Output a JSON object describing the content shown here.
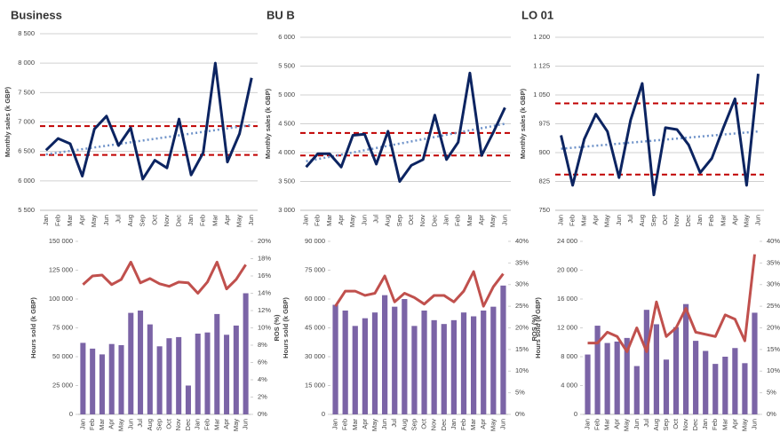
{
  "chart_data": [
    {
      "type": "line",
      "title": "Business",
      "y_label": "Monthly sales (k GBP)",
      "categories": [
        "Jan",
        "Feb",
        "Mar",
        "Apr",
        "May",
        "Jun",
        "Jul",
        "Aug",
        "Sep",
        "Oct",
        "Nov",
        "Dec",
        "Jan",
        "Feb",
        "Mar",
        "Apr",
        "May",
        "Jun"
      ],
      "series": [
        {
          "color": "#0c2461",
          "values": [
            6520,
            6720,
            6630,
            6080,
            6880,
            7100,
            6600,
            6900,
            6030,
            6350,
            6220,
            7050,
            6100,
            6480,
            8000,
            6320,
            6800,
            7750
          ]
        }
      ],
      "control_limits": [
        6930,
        6440
      ],
      "control_color": "#c00000",
      "trend_line": [
        6450,
        6950
      ],
      "trend_color": "#6f93c9",
      "ylim": [
        5500,
        8500
      ],
      "yticks": [
        {
          "value": 5500,
          "label": "5 500"
        },
        {
          "value": 6000,
          "label": "6 000"
        },
        {
          "value": 6500,
          "label": "6 500"
        },
        {
          "value": 7000,
          "label": "7 000"
        },
        {
          "value": 7500,
          "label": "7 500"
        },
        {
          "value": 8000,
          "label": "8 000"
        },
        {
          "value": 8500,
          "label": "8 500"
        }
      ],
      "grid": true
    },
    {
      "type": "line",
      "title": "BU B",
      "y_label": "Monthly sales (k GBP)",
      "categories": [
        "Jan",
        "Feb",
        "Mar",
        "Apr",
        "May",
        "Jun",
        "Jul",
        "Aug",
        "Sep",
        "Oct",
        "Nov",
        "Dec",
        "Jan",
        "Feb",
        "Mar",
        "Apr",
        "May",
        "Jun"
      ],
      "series": [
        {
          "color": "#0c2461",
          "values": [
            3750,
            3980,
            3980,
            3750,
            4300,
            4320,
            3800,
            4370,
            3500,
            3780,
            3880,
            4650,
            3880,
            4180,
            5380,
            3950,
            4350,
            4780
          ]
        }
      ],
      "control_limits": [
        4340,
        3950
      ],
      "control_color": "#c00000",
      "trend_line": [
        3850,
        4500
      ],
      "trend_color": "#6f93c9",
      "ylim": [
        3000,
        6000
      ],
      "yticks": [
        {
          "value": 3000,
          "label": "3 000"
        },
        {
          "value": 3500,
          "label": "3 500"
        },
        {
          "value": 4000,
          "label": "4 000"
        },
        {
          "value": 4500,
          "label": "4 500"
        },
        {
          "value": 5000,
          "label": "5 000"
        },
        {
          "value": 5500,
          "label": "5 500"
        },
        {
          "value": 6000,
          "label": "6 000"
        }
      ],
      "grid": true
    },
    {
      "type": "line",
      "title": "LO 01",
      "y_label": "Monthly sales (k GBP)",
      "categories": [
        "Jan",
        "Feb",
        "Mar",
        "Apr",
        "May",
        "Jun",
        "Jul",
        "Aug",
        "Sep",
        "Oct",
        "Nov",
        "Dec",
        "Jan",
        "Feb",
        "Mar",
        "Apr",
        "May",
        "Jun"
      ],
      "series": [
        {
          "color": "#0c2461",
          "values": [
            945,
            815,
            935,
            1000,
            955,
            835,
            985,
            1080,
            790,
            965,
            960,
            920,
            848,
            885,
            965,
            1040,
            815,
            1105
          ]
        }
      ],
      "control_limits": [
        1028,
        843
      ],
      "control_color": "#c00000",
      "trend_line": [
        910,
        955
      ],
      "trend_color": "#6f93c9",
      "ylim": [
        750,
        1200
      ],
      "yticks": [
        750,
        825,
        900,
        975,
        {
          "value": 1050,
          "label": "1 050"
        },
        {
          "value": 1125,
          "label": "1 125"
        },
        {
          "value": 1200,
          "label": "1 200"
        }
      ],
      "grid": true
    },
    {
      "type": "combo",
      "y_label": "Hours sold (k GBP)",
      "y2_label": "ROS (%)",
      "categories": [
        "Jan",
        "Feb",
        "Mar",
        "Apr",
        "May",
        "Jun",
        "Jul",
        "Aug",
        "Sep",
        "Oct",
        "Nov",
        "Dec",
        "Jan",
        "Feb",
        "Mar",
        "Apr",
        "May",
        "Jun"
      ],
      "series": [
        {
          "type": "bar",
          "color": "#7b64a6",
          "values": [
            62000,
            57000,
            52000,
            61000,
            60000,
            88000,
            90000,
            78000,
            59000,
            66000,
            67000,
            25000,
            70000,
            71000,
            87000,
            69000,
            77000,
            105000
          ]
        },
        {
          "type": "line",
          "axis": "y2",
          "color": "#c0504d",
          "values": [
            15.0,
            16.0,
            16.1,
            15.0,
            15.6,
            17.6,
            15.2,
            15.7,
            15.1,
            14.8,
            15.3,
            15.2,
            14.0,
            15.3,
            17.6,
            14.5,
            15.6,
            17.3
          ]
        }
      ],
      "ylim": [
        0,
        150000
      ],
      "yticks": [
        0,
        {
          "value": 25000,
          "label": "25 000"
        },
        {
          "value": 50000,
          "label": "50 000"
        },
        {
          "value": 75000,
          "label": "75 000"
        },
        {
          "value": 100000,
          "label": "100 000"
        },
        {
          "value": 125000,
          "label": "125 000"
        },
        {
          "value": 150000,
          "label": "150 000"
        }
      ],
      "y2lim": [
        0,
        20
      ],
      "y2ticks": [
        {
          "value": 0,
          "label": "0%"
        },
        {
          "value": 2,
          "label": "2%"
        },
        {
          "value": 4,
          "label": "4%"
        },
        {
          "value": 6,
          "label": "6%"
        },
        {
          "value": 8,
          "label": "8%"
        },
        {
          "value": 10,
          "label": "10%"
        },
        {
          "value": 12,
          "label": "12%"
        },
        {
          "value": 14,
          "label": "14%"
        },
        {
          "value": 16,
          "label": "16%"
        },
        {
          "value": 18,
          "label": "18%"
        },
        {
          "value": 20,
          "label": "20%"
        }
      ],
      "grid": false
    },
    {
      "type": "combo",
      "y_label": "Hours sold (k GBP)",
      "y2_label": "ROS (%)",
      "categories": [
        "Jan",
        "Feb",
        "Mar",
        "Apr",
        "May",
        "Jun",
        "Jul",
        "Aug",
        "Sep",
        "Oct",
        "Nov",
        "Dec",
        "Jan",
        "Feb",
        "Mar",
        "Apr",
        "May",
        "Jun"
      ],
      "series": [
        {
          "type": "bar",
          "color": "#7b64a6",
          "values": [
            57000,
            54000,
            46000,
            50000,
            53000,
            62000,
            56000,
            60000,
            46000,
            54000,
            49000,
            47000,
            49000,
            53000,
            51000,
            54000,
            56000,
            67000
          ]
        },
        {
          "type": "line",
          "axis": "y2",
          "color": "#c0504d",
          "values": [
            25,
            28.5,
            28.5,
            27.5,
            28,
            32,
            26,
            28,
            27,
            25.5,
            27.5,
            27.5,
            26,
            28.5,
            33,
            25,
            29.5,
            32.5
          ]
        }
      ],
      "ylim": [
        0,
        90000
      ],
      "yticks": [
        0,
        {
          "value": 15000,
          "label": "15 000"
        },
        {
          "value": 30000,
          "label": "30 000"
        },
        {
          "value": 45000,
          "label": "45 000"
        },
        {
          "value": 60000,
          "label": "60 000"
        },
        {
          "value": 75000,
          "label": "75 000"
        },
        {
          "value": 90000,
          "label": "90 000"
        }
      ],
      "y2lim": [
        0,
        40
      ],
      "y2ticks": [
        {
          "value": 0,
          "label": "0%"
        },
        {
          "value": 5,
          "label": "5%"
        },
        {
          "value": 10,
          "label": "10%"
        },
        {
          "value": 15,
          "label": "15%"
        },
        {
          "value": 20,
          "label": "20%"
        },
        {
          "value": 25,
          "label": "25%"
        },
        {
          "value": 30,
          "label": "30%"
        },
        {
          "value": 35,
          "label": "35%"
        },
        {
          "value": 40,
          "label": "40%"
        }
      ],
      "grid": false
    },
    {
      "type": "combo",
      "y_label": "Hours sold (k GBP)",
      "y2_label": "ROS (%)",
      "categories": [
        "Jan",
        "Feb",
        "Mar",
        "Apr",
        "May",
        "Jun",
        "Jul",
        "Aug",
        "Sep",
        "Oct",
        "Nov",
        "Dec",
        "Jan",
        "Feb",
        "Mar",
        "Apr",
        "May",
        "Jun"
      ],
      "series": [
        {
          "type": "bar",
          "color": "#7b64a6",
          "values": [
            8300,
            12300,
            9900,
            10100,
            10600,
            6700,
            14500,
            12500,
            7600,
            12100,
            15300,
            10200,
            8800,
            7000,
            8000,
            9200,
            7100,
            14100
          ]
        },
        {
          "type": "line",
          "axis": "y2",
          "color": "#c0504d",
          "values": [
            16.5,
            16.5,
            19,
            18,
            14.5,
            20,
            14.5,
            26,
            18,
            20,
            24.5,
            19,
            18.5,
            18,
            23,
            22,
            17,
            37
          ]
        }
      ],
      "ylim": [
        0,
        24000
      ],
      "yticks": [
        0,
        {
          "value": 4000,
          "label": "4 000"
        },
        {
          "value": 8000,
          "label": "8 000"
        },
        {
          "value": 12000,
          "label": "12 000"
        },
        {
          "value": 16000,
          "label": "16 000"
        },
        {
          "value": 20000,
          "label": "20 000"
        },
        {
          "value": 24000,
          "label": "24 000"
        }
      ],
      "y2lim": [
        0,
        40
      ],
      "y2ticks": [
        {
          "value": 0,
          "label": "0%"
        },
        {
          "value": 5,
          "label": "5%"
        },
        {
          "value": 10,
          "label": "10%"
        },
        {
          "value": 15,
          "label": "15%"
        },
        {
          "value": 20,
          "label": "20%"
        },
        {
          "value": 25,
          "label": "25%"
        },
        {
          "value": 30,
          "label": "30%"
        },
        {
          "value": 35,
          "label": "35%"
        },
        {
          "value": 40,
          "label": "40%"
        }
      ],
      "grid": false
    }
  ]
}
